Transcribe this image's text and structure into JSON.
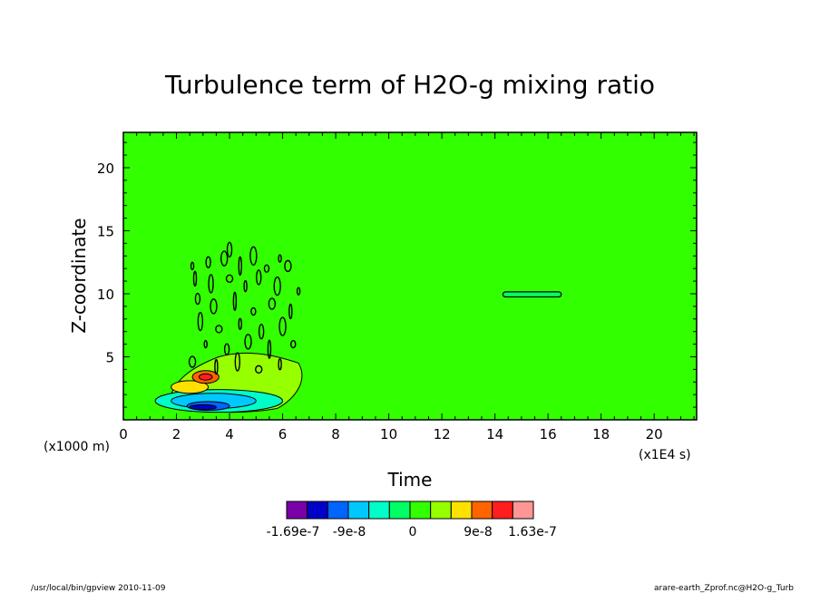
{
  "chart_data": {
    "type": "heatmap",
    "title": "Turbulence term of H2O-g mixing ratio",
    "xlabel": "Time",
    "ylabel": "Z-coordinate",
    "x_unit": "(x1E4 s)",
    "y_unit": "(x1000 m)",
    "xlim": [
      0,
      21.6
    ],
    "ylim": [
      0,
      22.8
    ],
    "x_ticks": [
      0,
      2,
      4,
      6,
      8,
      10,
      12,
      14,
      16,
      18,
      20
    ],
    "y_ticks": [
      5,
      10,
      15,
      20
    ],
    "background_level": 0,
    "colorbar": {
      "colors": [
        "#7a00a8",
        "#0000c8",
        "#0064ff",
        "#00c8ff",
        "#00ffc8",
        "#00ff64",
        "#32ff00",
        "#96ff00",
        "#ffe100",
        "#ff6400",
        "#ff1e1e",
        "#ff9696"
      ],
      "labels": [
        "-1.69e-7",
        "-9e-8",
        "0",
        "9e-8",
        "1.63e-7"
      ]
    },
    "features": [
      {
        "kind": "negative-core",
        "x": 3.1,
        "y": 1.0,
        "value": -1.6e-07,
        "color": "#0000c8"
      },
      {
        "kind": "negative-band",
        "x": 3.5,
        "y": 1.6,
        "value": -8e-08,
        "color": "#00c8ff"
      },
      {
        "kind": "positive-core",
        "x": 3.0,
        "y": 3.4,
        "value": 1.6e-07,
        "color": "#ff1e1e"
      },
      {
        "kind": "positive-band",
        "x": 2.4,
        "y": 2.6,
        "value": 9e-08,
        "color": "#ffe100"
      },
      {
        "kind": "closed-contour",
        "x": 15.4,
        "y": 9.9,
        "value": 0
      }
    ]
  },
  "footer": {
    "left": "/usr/local/bin/gpview  2010-11-09",
    "right": "arare-earth_Zprof.nc@H2O-g_Turb"
  }
}
